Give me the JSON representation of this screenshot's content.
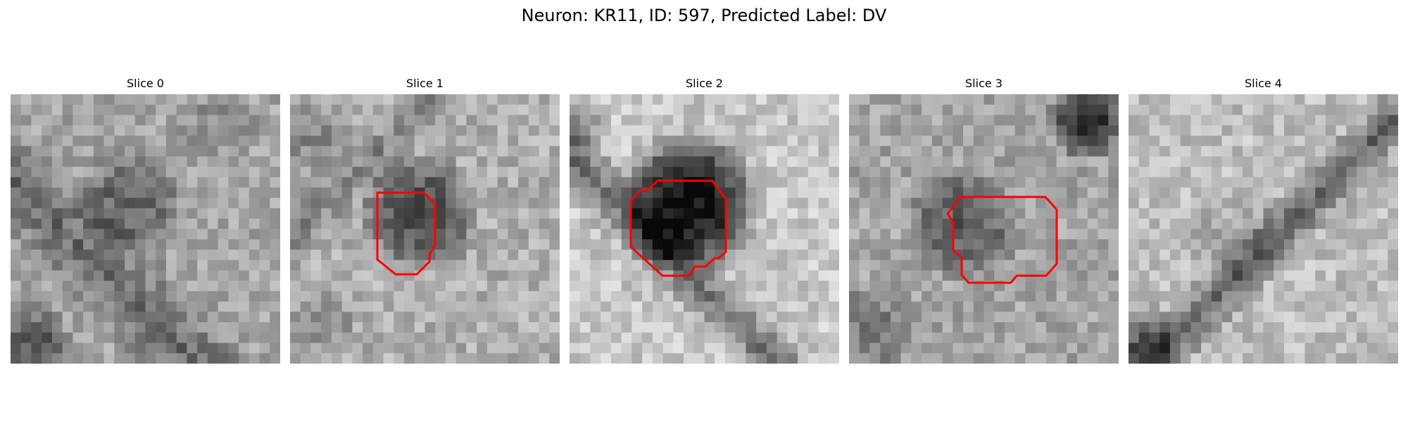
{
  "figure": {
    "title": "Neuron: KR11, ID: 597, Predicted Label: DV",
    "contour_color": "#ff0000",
    "colormap": "grayscale"
  },
  "panels": [
    {
      "title": "Slice 0",
      "has_contour": false
    },
    {
      "title": "Slice 1",
      "has_contour": true
    },
    {
      "title": "Slice 2",
      "has_contour": true
    },
    {
      "title": "Slice 3",
      "has_contour": true
    },
    {
      "title": "Slice 4",
      "has_contour": false
    }
  ]
}
